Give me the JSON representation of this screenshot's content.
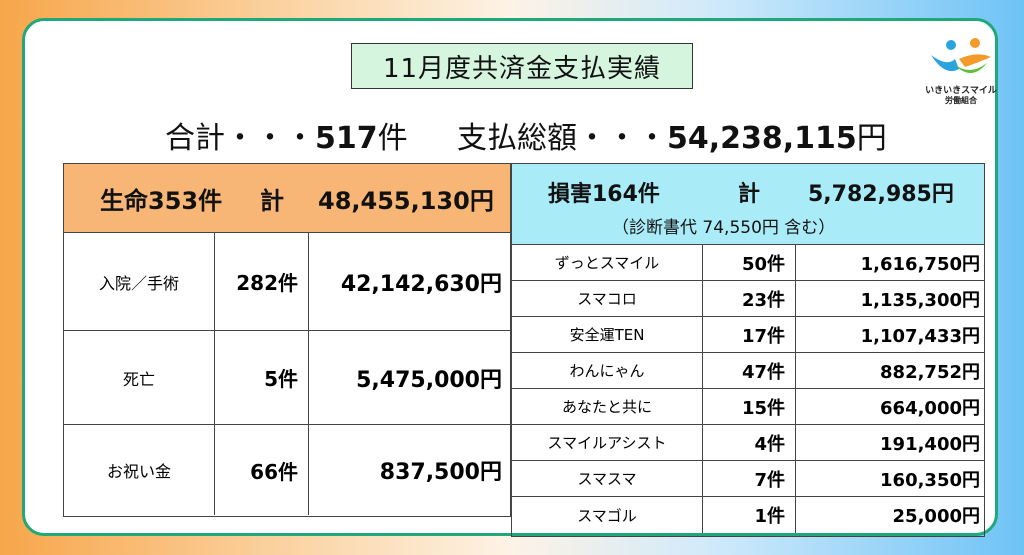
{
  "title": "11月度共済金支払実績",
  "logo": {
    "line1": "いきいきスマイル",
    "line2": "労働組合",
    "colors": {
      "orange": "#f39a2b",
      "green": "#5fbf3a",
      "blue": "#2aa4e0"
    }
  },
  "totals": {
    "count_label": "合計・・・",
    "count_value": "517",
    "count_unit": "件",
    "amount_label": "支払総額・・・",
    "amount_value": "54,238,115",
    "amount_unit": "円"
  },
  "life": {
    "head_count": "生命353件",
    "head_kei": "計",
    "head_amount": "48,455,130円",
    "rows": [
      {
        "label": "入院／手術",
        "count": "282件",
        "amount": "42,142,630円"
      },
      {
        "label": "死亡",
        "count": "5件",
        "amount": "5,475,000円"
      },
      {
        "label": "お祝い金",
        "count": "66件",
        "amount": "837,500円"
      }
    ]
  },
  "damage": {
    "head_count": "損害164件",
    "head_kei": "計",
    "head_amount": "5,782,985円",
    "note": "（診断書代 74,550円 含む）",
    "rows": [
      {
        "label": "ずっとスマイル",
        "count": "50件",
        "amount": "1,616,750円"
      },
      {
        "label": "スマコロ",
        "count": "23件",
        "amount": "1,135,300円"
      },
      {
        "label": "安全運TEN",
        "count": "17件",
        "amount": "1,107,433円"
      },
      {
        "label": "わんにゃん",
        "count": "47件",
        "amount": "882,752円"
      },
      {
        "label": "あなたと共に",
        "count": "15件",
        "amount": "664,000円"
      },
      {
        "label": "スマイルアシスト",
        "count": "4件",
        "amount": "191,400円"
      },
      {
        "label": "スマスマ",
        "count": "7件",
        "amount": "160,350円"
      },
      {
        "label": "スマゴル",
        "count": "1件",
        "amount": "25,000円"
      }
    ]
  }
}
